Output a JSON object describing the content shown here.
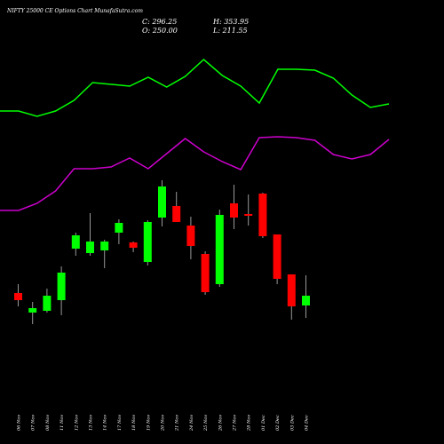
{
  "colors": {
    "background": "#000000",
    "text": "#ffffff",
    "up": "#00ff00",
    "down": "#ff0000",
    "wick": "#999999",
    "upper_band": "#00ff00",
    "lower_band": "#cc00cc"
  },
  "header": {
    "title": "NIFTY 25000  CE Options  Chart MunafaSutra.com",
    "close_text": "C: 296.25",
    "high_text": "H: 353.95",
    "open_text": "O: 250.00",
    "low_text": "L: 211.55"
  },
  "chart_data": {
    "type": "candlestick",
    "title": "NIFTY 25000  CE Options  Chart MunafaSutra.com",
    "categories": [
      "06 Nov",
      "07 Nov",
      "08 Nov",
      "11 Nov",
      "12 Nov",
      "13 Nov",
      "14 Nov",
      "17 Nov",
      "18 Nov",
      "19 Nov",
      "20 Nov",
      "21 Nov",
      "24 Nov",
      "25 Nov",
      "26 Nov",
      "27 Nov",
      "28 Nov",
      "01 Dec",
      "02 Dec",
      "03 Dec",
      "04 Dec"
    ],
    "candles": [
      {
        "date": "06 Nov",
        "open": 130,
        "high": 140,
        "low": 115,
        "close": 122
      },
      {
        "date": "07 Nov",
        "open": 108,
        "high": 120,
        "low": 95,
        "close": 113
      },
      {
        "date": "08 Nov",
        "open": 110,
        "high": 135,
        "low": 108,
        "close": 127
      },
      {
        "date": "11 Nov",
        "open": 122,
        "high": 160,
        "low": 105,
        "close": 153
      },
      {
        "date": "12 Nov",
        "open": 180,
        "high": 198,
        "low": 172,
        "close": 195
      },
      {
        "date": "13 Nov",
        "open": 175,
        "high": 220,
        "low": 172,
        "close": 188
      },
      {
        "date": "14 Nov",
        "open": 178,
        "high": 190,
        "low": 158,
        "close": 188
      },
      {
        "date": "17 Nov",
        "open": 198,
        "high": 213,
        "low": 185,
        "close": 209
      },
      {
        "date": "18 Nov",
        "open": 187,
        "high": 188,
        "low": 176,
        "close": 181
      },
      {
        "date": "19 Nov",
        "open": 165,
        "high": 212,
        "low": 161,
        "close": 210
      },
      {
        "date": "20 Nov",
        "open": 215,
        "high": 257,
        "low": 205,
        "close": 250
      },
      {
        "date": "21 Nov",
        "open": 228,
        "high": 244,
        "low": 210,
        "close": 210
      },
      {
        "date": "24 Nov",
        "open": 206,
        "high": 216,
        "low": 168,
        "close": 183
      },
      {
        "date": "25 Nov",
        "open": 174,
        "high": 177,
        "low": 128,
        "close": 131
      },
      {
        "date": "26 Nov",
        "open": 140,
        "high": 224,
        "low": 137,
        "close": 218
      },
      {
        "date": "27 Nov",
        "open": 231,
        "high": 252,
        "low": 202,
        "close": 215
      },
      {
        "date": "28 Nov",
        "open": 219,
        "high": 241,
        "low": 206,
        "close": 217
      },
      {
        "date": "01 Dec",
        "open": 242,
        "high": 243,
        "low": 192,
        "close": 194
      },
      {
        "date": "02 Dec",
        "open": 196,
        "high": 196,
        "low": 140,
        "close": 146
      },
      {
        "date": "03 Dec",
        "open": 151,
        "high": 151,
        "low": 100,
        "close": 115
      },
      {
        "date": "04 Dec",
        "open": 116,
        "high": 150,
        "low": 102,
        "close": 127
      }
    ],
    "bands": {
      "upper": [
        335,
        335,
        329,
        335,
        347,
        367,
        365,
        363,
        373,
        362,
        374,
        393,
        375,
        363,
        344,
        382,
        382,
        381,
        372,
        353,
        339,
        343
      ],
      "lower": [
        223,
        223,
        231,
        245,
        270,
        270,
        272,
        282,
        270,
        287,
        304,
        289,
        278,
        269,
        305,
        306,
        305,
        302,
        286,
        281,
        286,
        303
      ]
    },
    "ylim": [
      40,
      420
    ]
  }
}
